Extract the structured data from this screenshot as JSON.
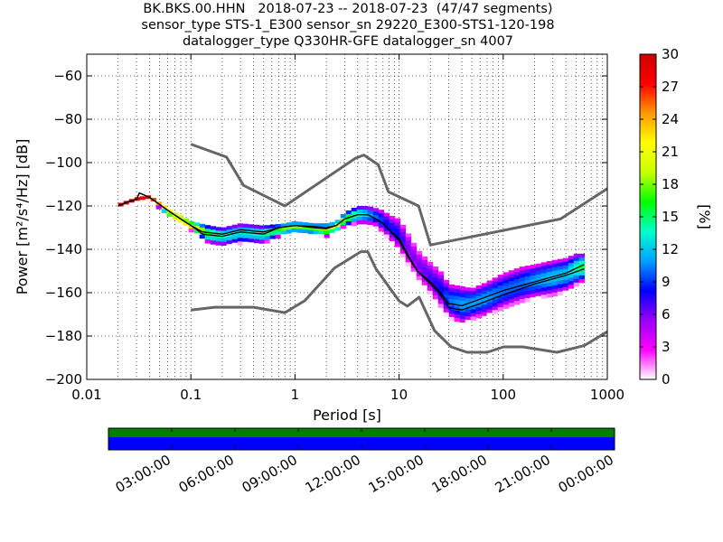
{
  "chart_data": {
    "type": "heatmap",
    "title_lines": [
      "BK.BKS.00.HHN   2018-07-23 -- 2018-07-23  (47/47 segments)",
      "sensor_type STS-1_E300 sensor_sn 29220_E300-STS1-120-198",
      "datalogger_type Q330HR-GFE datalogger_sn 4007"
    ],
    "xlabel": "Period [s]",
    "ylabel": "Power [m²/s⁴/Hz] [dB]",
    "xscale": "log",
    "xlim": [
      0.01,
      1000
    ],
    "ylim": [
      -200,
      -50
    ],
    "xticks": [
      {
        "value": 0.01,
        "label": "0.01"
      },
      {
        "value": 0.1,
        "label": "0.1"
      },
      {
        "value": 1,
        "label": "1"
      },
      {
        "value": 10,
        "label": "10"
      },
      {
        "value": 100,
        "label": "100"
      },
      {
        "value": 1000,
        "label": "1000"
      }
    ],
    "yticks": [
      {
        "value": -60,
        "label": "−60"
      },
      {
        "value": -80,
        "label": "−80"
      },
      {
        "value": -100,
        "label": "−100"
      },
      {
        "value": -120,
        "label": "−120"
      },
      {
        "value": -140,
        "label": "−140"
      },
      {
        "value": -160,
        "label": "−160"
      },
      {
        "value": -180,
        "label": "−180"
      },
      {
        "value": -200,
        "label": "−200"
      }
    ],
    "grid": true,
    "colorbar": {
      "label": "[%]",
      "range": [
        0,
        30
      ],
      "ticks": [
        "0",
        "3",
        "6",
        "9",
        "12",
        "15",
        "18",
        "21",
        "24",
        "27",
        "30"
      ],
      "colormap": [
        "#ffffff",
        "#ff00ff",
        "#9900ff",
        "#0000ff",
        "#00a0ff",
        "#00ffcc",
        "#00ff00",
        "#c8ff00",
        "#ffff00",
        "#ff9900",
        "#ff0000",
        "#cc0000"
      ]
    },
    "noise_models": [
      {
        "name": "NHNM",
        "points": [
          [
            0.1,
            -91.5
          ],
          [
            0.22,
            -97.4
          ],
          [
            0.32,
            -110.5
          ],
          [
            0.8,
            -120
          ],
          [
            3.8,
            -98
          ],
          [
            4.6,
            -96.5
          ],
          [
            6.3,
            -101
          ],
          [
            7.9,
            -113.5
          ],
          [
            15.4,
            -120
          ],
          [
            20,
            -138
          ],
          [
            354.8,
            -126
          ],
          [
            1000,
            -112
          ]
        ]
      },
      {
        "name": "NLNM",
        "points": [
          [
            0.1,
            -168
          ],
          [
            0.17,
            -166.7
          ],
          [
            0.4,
            -166.7
          ],
          [
            0.8,
            -169.2
          ],
          [
            1.24,
            -163.7
          ],
          [
            2.4,
            -148.6
          ],
          [
            4.3,
            -141.1
          ],
          [
            5,
            -141.1
          ],
          [
            6,
            -149
          ],
          [
            10,
            -163.8
          ],
          [
            12,
            -166.2
          ],
          [
            15.6,
            -162.1
          ],
          [
            21.9,
            -177.5
          ],
          [
            31.6,
            -185
          ],
          [
            45,
            -187.5
          ],
          [
            70,
            -187.5
          ],
          [
            101,
            -185
          ],
          [
            154,
            -185
          ],
          [
            328,
            -187.5
          ],
          [
            600,
            -184.4
          ],
          [
            1000,
            -178
          ]
        ]
      }
    ],
    "mean_psd": [
      [
        0.02,
        -120
      ],
      [
        0.025,
        -118
      ],
      [
        0.03,
        -117
      ],
      [
        0.032,
        -114
      ],
      [
        0.04,
        -116
      ],
      [
        0.06,
        -122
      ],
      [
        0.08,
        -126
      ],
      [
        0.1,
        -129
      ],
      [
        0.13,
        -132
      ],
      [
        0.2,
        -133
      ],
      [
        0.3,
        -131
      ],
      [
        0.5,
        -132
      ],
      [
        0.7,
        -130
      ],
      [
        1,
        -129
      ],
      [
        1.5,
        -130
      ],
      [
        2,
        -130.5
      ],
      [
        2.5,
        -129
      ],
      [
        3,
        -126
      ],
      [
        4,
        -124
      ],
      [
        5,
        -124
      ],
      [
        6,
        -126
      ],
      [
        7,
        -128
      ],
      [
        8,
        -131
      ],
      [
        10,
        -136
      ],
      [
        12,
        -143
      ],
      [
        15,
        -150
      ],
      [
        20,
        -155
      ],
      [
        25,
        -160
      ],
      [
        30,
        -165
      ],
      [
        40,
        -166
      ],
      [
        60,
        -163
      ],
      [
        100,
        -159
      ],
      [
        200,
        -155
      ],
      [
        400,
        -151
      ],
      [
        600,
        -147
      ]
    ],
    "mode_psd": [
      [
        0.02,
        -120
      ],
      [
        0.025,
        -118
      ],
      [
        0.03,
        -117
      ],
      [
        0.032,
        -114
      ],
      [
        0.04,
        -116
      ],
      [
        0.06,
        -122
      ],
      [
        0.08,
        -126
      ],
      [
        0.1,
        -129
      ],
      [
        0.13,
        -133
      ],
      [
        0.2,
        -134
      ],
      [
        0.3,
        -132
      ],
      [
        0.5,
        -133
      ],
      [
        0.7,
        -130
      ],
      [
        1,
        -129
      ],
      [
        1.5,
        -129.5
      ],
      [
        2,
        -130
      ],
      [
        2.5,
        -129
      ],
      [
        3,
        -126
      ],
      [
        4,
        -124
      ],
      [
        5,
        -124
      ],
      [
        6,
        -126
      ],
      [
        7,
        -128
      ],
      [
        8,
        -131
      ],
      [
        10,
        -135
      ],
      [
        12,
        -142
      ],
      [
        15,
        -150
      ],
      [
        20,
        -156
      ],
      [
        25,
        -161
      ],
      [
        30,
        -167
      ],
      [
        40,
        -168
      ],
      [
        60,
        -165
      ],
      [
        100,
        -161
      ],
      [
        200,
        -156
      ],
      [
        400,
        -152
      ],
      [
        600,
        -149
      ]
    ],
    "density_band": [
      {
        "x": 0.02,
        "lo": -121,
        "hi": -119,
        "peak": 30
      },
      {
        "x": 0.03,
        "lo": -118,
        "hi": -116,
        "peak": 30
      },
      {
        "x": 0.04,
        "lo": -117,
        "hi": -115,
        "peak": 28
      },
      {
        "x": 0.06,
        "lo": -124,
        "hi": -121,
        "peak": 26
      },
      {
        "x": 0.1,
        "lo": -131,
        "hi": -127,
        "peak": 24
      },
      {
        "x": 0.15,
        "lo": -137,
        "hi": -129,
        "peak": 16
      },
      {
        "x": 0.2,
        "lo": -138,
        "hi": -130,
        "peak": 14
      },
      {
        "x": 0.3,
        "lo": -137,
        "hi": -128,
        "peak": 13
      },
      {
        "x": 0.5,
        "lo": -137,
        "hi": -129,
        "peak": 14
      },
      {
        "x": 0.8,
        "lo": -133,
        "hi": -128,
        "peak": 18
      },
      {
        "x": 1,
        "lo": -132,
        "hi": -127,
        "peak": 18
      },
      {
        "x": 1.5,
        "lo": -133,
        "hi": -128,
        "peak": 17
      },
      {
        "x": 2,
        "lo": -134,
        "hi": -128,
        "peak": 19
      },
      {
        "x": 2.5,
        "lo": -132,
        "hi": -127,
        "peak": 20
      },
      {
        "x": 3,
        "lo": -129,
        "hi": -123,
        "peak": 18
      },
      {
        "x": 4,
        "lo": -128,
        "hi": -120,
        "peak": 14
      },
      {
        "x": 5,
        "lo": -128,
        "hi": -120,
        "peak": 12
      },
      {
        "x": 6,
        "lo": -129,
        "hi": -121,
        "peak": 10
      },
      {
        "x": 7,
        "lo": -132,
        "hi": -122,
        "peak": 9
      },
      {
        "x": 8,
        "lo": -135,
        "hi": -124,
        "peak": 8
      },
      {
        "x": 10,
        "lo": -140,
        "hi": -126,
        "peak": 8
      },
      {
        "x": 12,
        "lo": -146,
        "hi": -132,
        "peak": 6
      },
      {
        "x": 15,
        "lo": -153,
        "hi": -140,
        "peak": 6
      },
      {
        "x": 20,
        "lo": -160,
        "hi": -146,
        "peak": 7
      },
      {
        "x": 25,
        "lo": -166,
        "hi": -150,
        "peak": 8
      },
      {
        "x": 30,
        "lo": -171,
        "hi": -156,
        "peak": 10
      },
      {
        "x": 40,
        "lo": -174,
        "hi": -157,
        "peak": 11
      },
      {
        "x": 50,
        "lo": -172,
        "hi": -158,
        "peak": 11
      },
      {
        "x": 70,
        "lo": -170,
        "hi": -155,
        "peak": 11
      },
      {
        "x": 100,
        "lo": -167,
        "hi": -151,
        "peak": 10
      },
      {
        "x": 150,
        "lo": -164,
        "hi": -148,
        "peak": 10
      },
      {
        "x": 200,
        "lo": -162,
        "hi": -147,
        "peak": 11
      },
      {
        "x": 300,
        "lo": -161,
        "hi": -145,
        "peak": 12
      },
      {
        "x": 400,
        "lo": -159,
        "hi": -144,
        "peak": 12
      },
      {
        "x": 500,
        "lo": -156,
        "hi": -142,
        "peak": 14
      },
      {
        "x": 600,
        "lo": -154,
        "hi": -142,
        "peak": 16
      }
    ],
    "coverage": {
      "tick_labels": [
        "03:00:00",
        "06:00:00",
        "09:00:00",
        "12:00:00",
        "15:00:00",
        "18:00:00",
        "21:00:00",
        "00:00:00"
      ],
      "tick_fractions": [
        0.125,
        0.25,
        0.375,
        0.5,
        0.625,
        0.75,
        0.875,
        1.0
      ],
      "data_color": "#008000",
      "used_color": "#0000ff"
    }
  }
}
